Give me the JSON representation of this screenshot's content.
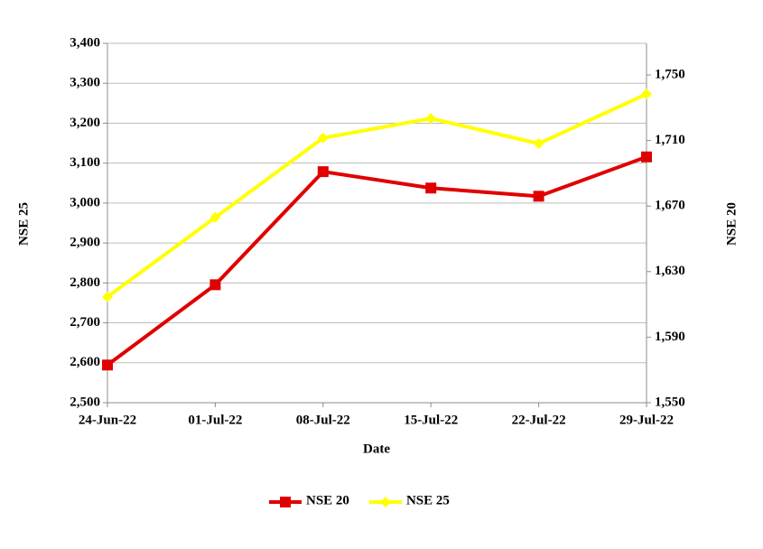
{
  "chart_data": {
    "type": "line",
    "x_label": "Date",
    "y_label": "NSE 25",
    "y2_label": "NSE 20",
    "categories": [
      "24-Jun-22",
      "01-Jul-22",
      "08-Jul-22",
      "15-Jul-22",
      "22-Jul-22",
      "29-Jul-22"
    ],
    "series": [
      {
        "name": "NSE 20",
        "color": "#e00000",
        "marker": "square",
        "axis": "y2",
        "values": [
          1573,
          1622,
          1691,
          1681,
          1676,
          1700
        ]
      },
      {
        "name": "NSE 25",
        "color": "#ffff00",
        "marker": "diamond",
        "values": [
          2765,
          2964,
          3163,
          3212,
          3149,
          3273
        ]
      }
    ],
    "ylim": [
      2500,
      3400
    ],
    "yticks": [
      {
        "value": 2500,
        "label": "2,500"
      },
      {
        "value": 2600,
        "label": "2,600"
      },
      {
        "value": 2700,
        "label": "2,700"
      },
      {
        "value": 2800,
        "label": "2,800"
      },
      {
        "value": 2900,
        "label": "2,900"
      },
      {
        "value": 3000,
        "label": "3,000"
      },
      {
        "value": 3100,
        "label": "3,100"
      },
      {
        "value": 3200,
        "label": "3,200"
      },
      {
        "value": 3300,
        "label": "3,300"
      },
      {
        "value": 3400,
        "label": "3,400"
      }
    ],
    "y2lim": [
      1550,
      1769.3
    ],
    "y2ticks": [
      {
        "value": 1550,
        "label": "1,550"
      },
      {
        "value": 1590,
        "label": "1,590"
      },
      {
        "value": 1630,
        "label": "1,630"
      },
      {
        "value": 1670,
        "label": "1,670"
      },
      {
        "value": 1710,
        "label": "1,710"
      },
      {
        "value": 1750,
        "label": "1,750"
      }
    ],
    "grid": true,
    "legend": "bottom"
  }
}
